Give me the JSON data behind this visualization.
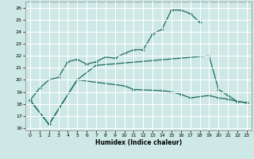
{
  "xlabel": "Humidex (Indice chaleur)",
  "background_color": "#cde8e5",
  "grid_color": "#ffffff",
  "line_color": "#1a6b5a",
  "xlim": [
    -0.5,
    23.5
  ],
  "ylim": [
    15.8,
    26.5
  ],
  "xticks": [
    0,
    1,
    2,
    3,
    4,
    5,
    6,
    7,
    8,
    9,
    10,
    11,
    12,
    13,
    14,
    15,
    16,
    17,
    18,
    19,
    20,
    21,
    22,
    23
  ],
  "yticks": [
    16,
    17,
    18,
    19,
    20,
    21,
    22,
    23,
    24,
    25,
    26
  ],
  "line1_x": [
    0,
    1,
    2,
    3,
    4,
    5,
    6,
    7,
    8,
    9,
    10,
    11,
    12,
    13,
    14,
    15,
    16,
    17,
    18
  ],
  "line1_y": [
    18.3,
    19.3,
    20.0,
    20.2,
    21.5,
    21.7,
    21.3,
    21.5,
    21.9,
    21.8,
    22.2,
    22.5,
    22.5,
    23.8,
    24.2,
    25.8,
    25.8,
    25.5,
    24.8
  ],
  "line2_x": [
    0,
    2,
    5,
    7,
    19,
    20,
    21,
    22,
    23
  ],
  "line2_y": [
    18.3,
    16.3,
    20.0,
    21.2,
    22.0,
    19.2,
    18.7,
    18.2,
    18.1
  ],
  "line3_x": [
    0,
    2,
    5,
    10,
    11,
    14,
    15,
    16,
    17,
    19,
    20,
    21,
    22,
    23
  ],
  "line3_y": [
    18.3,
    16.3,
    20.0,
    19.5,
    19.2,
    19.1,
    19.0,
    18.8,
    18.5,
    18.7,
    18.5,
    18.4,
    18.2,
    18.1
  ]
}
